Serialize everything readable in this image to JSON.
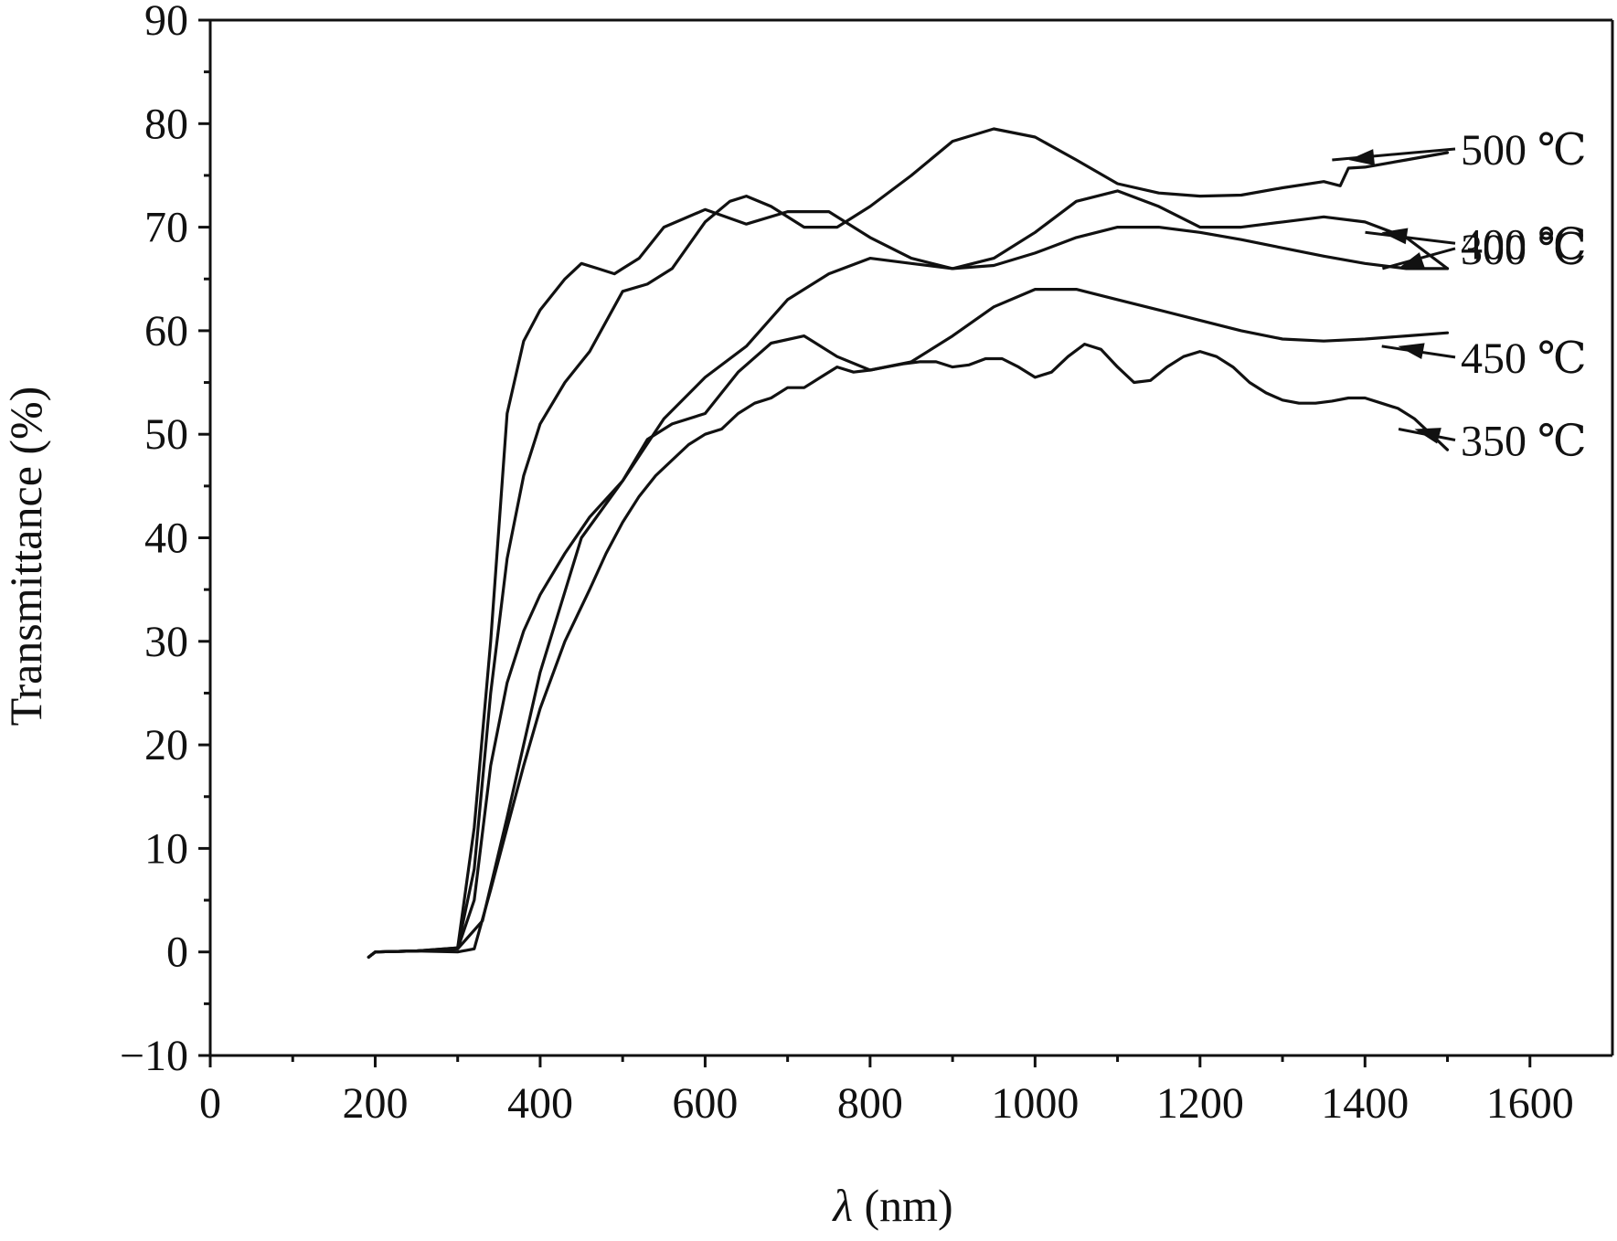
{
  "chart_data": {
    "type": "line",
    "xlabel_italic": "λ",
    "xlabel_rest": " (nm)",
    "ylabel": "Transmittance (%)",
    "xlim": [
      0,
      1700
    ],
    "ylim": [
      -10,
      90
    ],
    "x_ticks": [
      0,
      200,
      400,
      600,
      800,
      1000,
      1200,
      1400,
      1600
    ],
    "x_tick_labels": [
      "0",
      "200",
      "400",
      "600",
      "800",
      "1000",
      "1200",
      "1400",
      "1600"
    ],
    "y_ticks": [
      -10,
      0,
      10,
      20,
      30,
      40,
      50,
      60,
      70,
      80,
      90
    ],
    "y_tick_labels": [
      "−10",
      "0",
      "10",
      "20",
      "30",
      "40",
      "50",
      "60",
      "70",
      "80",
      "90"
    ],
    "grid": false,
    "line_color": "#111111",
    "series": [
      {
        "name": "300 ℃",
        "label_at": [
          1440,
          66
        ],
        "x": [
          192,
          200,
          250,
          300,
          320,
          340,
          360,
          380,
          400,
          430,
          450,
          470,
          490,
          500,
          520,
          550,
          600,
          650,
          700,
          750,
          800,
          850,
          900,
          950,
          1000,
          1050,
          1100,
          1150,
          1200,
          1250,
          1300,
          1350,
          1400,
          1450,
          1500
        ],
        "y": [
          -0.5,
          0,
          0.1,
          0.4,
          12,
          30,
          52,
          59,
          62,
          65,
          66.5,
          66,
          65.5,
          66,
          67,
          70,
          71.7,
          70.3,
          71.5,
          71.5,
          69,
          67,
          66,
          66.3,
          67.5,
          69,
          70,
          70,
          69.5,
          68.8,
          68,
          67.2,
          66.5,
          66,
          66
        ]
      },
      {
        "name": "500 ℃",
        "label_at": [
          1380,
          76.5
        ],
        "x": [
          192,
          200,
          250,
          300,
          320,
          340,
          360,
          380,
          400,
          430,
          460,
          500,
          530,
          560,
          600,
          630,
          650,
          680,
          720,
          760,
          800,
          850,
          900,
          950,
          1000,
          1050,
          1100,
          1150,
          1200,
          1250,
          1300,
          1350,
          1370,
          1380,
          1400,
          1450,
          1500
        ],
        "y": [
          -0.5,
          0,
          0.1,
          0.4,
          8,
          25,
          38,
          46,
          51,
          55,
          58,
          63.8,
          64.5,
          66,
          70.5,
          72.5,
          73,
          72,
          70,
          70,
          72,
          75,
          78.3,
          79.5,
          78.7,
          76.5,
          74.2,
          73.3,
          73,
          73.1,
          73.8,
          74.4,
          74,
          75.7,
          75.8,
          76.5,
          77.2
        ]
      },
      {
        "name": "400 ℃",
        "label_at": [
          1420,
          69.5
        ],
        "x": [
          192,
          200,
          250,
          300,
          320,
          340,
          360,
          380,
          400,
          430,
          460,
          500,
          550,
          600,
          650,
          700,
          750,
          800,
          850,
          900,
          950,
          1000,
          1050,
          1100,
          1150,
          1200,
          1250,
          1300,
          1350,
          1400,
          1450,
          1500
        ],
        "y": [
          -0.5,
          0,
          0.1,
          0.3,
          5,
          18,
          26,
          31,
          34.5,
          38.5,
          42,
          45.5,
          51.5,
          55.5,
          58.5,
          63,
          65.5,
          67,
          66.5,
          66,
          67,
          69.5,
          72.5,
          73.5,
          72,
          70,
          70,
          70.5,
          71,
          70.5,
          69,
          66
        ]
      },
      {
        "name": "450 ℃",
        "label_at": [
          1440,
          58.5
        ],
        "x": [
          192,
          200,
          250,
          300,
          330,
          360,
          400,
          450,
          500,
          530,
          560,
          600,
          640,
          680,
          720,
          760,
          800,
          850,
          900,
          950,
          1000,
          1050,
          1100,
          1150,
          1200,
          1250,
          1300,
          1350,
          1400,
          1450,
          1500
        ],
        "y": [
          -0.5,
          0,
          0.1,
          0.3,
          3,
          13,
          27,
          40,
          45.5,
          49.5,
          51,
          52,
          56,
          58.8,
          59.5,
          57.5,
          56.2,
          57,
          59.5,
          62.3,
          64,
          64,
          63,
          62,
          61,
          60,
          59.2,
          59,
          59.2,
          59.5,
          59.8
        ]
      },
      {
        "name": "350 ℃",
        "label_at": [
          1460,
          50.5
        ],
        "x": [
          192,
          200,
          250,
          300,
          320,
          340,
          360,
          380,
          400,
          430,
          460,
          480,
          500,
          520,
          540,
          560,
          580,
          600,
          620,
          640,
          660,
          680,
          700,
          720,
          740,
          760,
          780,
          800,
          820,
          840,
          860,
          880,
          900,
          920,
          940,
          960,
          980,
          1000,
          1020,
          1040,
          1060,
          1080,
          1100,
          1120,
          1140,
          1160,
          1180,
          1200,
          1220,
          1240,
          1260,
          1280,
          1300,
          1320,
          1340,
          1360,
          1380,
          1400,
          1420,
          1440,
          1460,
          1480,
          1500
        ],
        "y": [
          -0.5,
          0,
          0.1,
          0,
          0.3,
          6,
          12,
          18,
          23.5,
          30,
          35,
          38.5,
          41.5,
          44,
          46,
          47.5,
          49,
          50,
          50.5,
          52,
          53,
          53.5,
          54.5,
          54.5,
          55.5,
          56.5,
          56,
          56.2,
          56.5,
          56.8,
          57,
          57,
          56.5,
          56.7,
          57.3,
          57.3,
          56.5,
          55.5,
          56,
          57.5,
          58.7,
          58.2,
          56.5,
          55,
          55.2,
          56.5,
          57.5,
          58,
          57.5,
          56.5,
          55,
          54,
          53.3,
          53,
          53,
          53.2,
          53.5,
          53.5,
          53,
          52.5,
          51.5,
          50,
          48.5
        ]
      }
    ]
  }
}
